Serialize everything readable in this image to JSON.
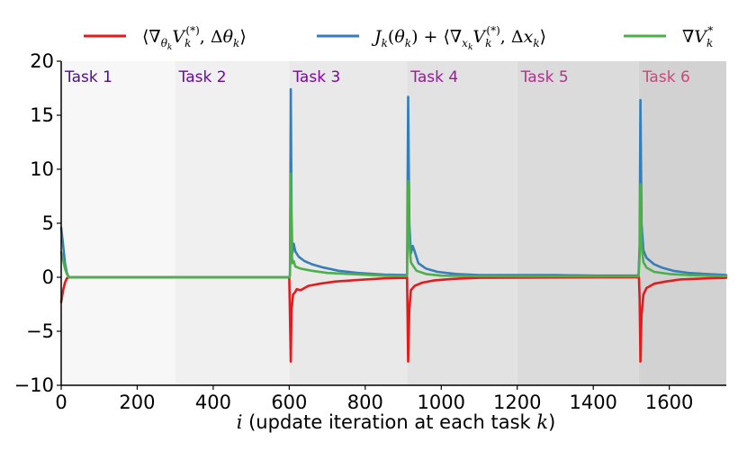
{
  "chart_data": {
    "type": "line",
    "xlabel": "i (update iteration at each task k)",
    "xlabel_italic_i": "i",
    "xlabel_rest": " (update iteration at each task ",
    "xlabel_italic_k": "k",
    "xlabel_end": ")",
    "xlim": [
      0,
      1750
    ],
    "ylim": [
      -10,
      20
    ],
    "xticks": [
      0,
      200,
      400,
      600,
      800,
      1000,
      1200,
      1400,
      1600
    ],
    "yticks": [
      -10,
      -5,
      0,
      5,
      10,
      15,
      20
    ],
    "xtick_labels": [
      "0",
      "200",
      "400",
      "600",
      "800",
      "1000",
      "1200",
      "1400",
      "1600"
    ],
    "ytick_labels": [
      "−10",
      "−5",
      "0",
      "5",
      "10",
      "15",
      "20"
    ],
    "grid": false,
    "legend_position": "top",
    "tasks": [
      {
        "label": "Task 1",
        "start": 0,
        "end": 300,
        "shade": "#f7f7f7",
        "color": "#4b0b9e"
      },
      {
        "label": "Task 2",
        "start": 300,
        "end": 600,
        "shade": "#f0f0f0",
        "color": "#6a0aa6"
      },
      {
        "label": "Task 3",
        "start": 600,
        "end": 910,
        "shade": "#e9e9e9",
        "color": "#7e05a4"
      },
      {
        "label": "Task 4",
        "start": 910,
        "end": 1200,
        "shade": "#e2e2e2",
        "color": "#9c179e"
      },
      {
        "label": "Task 5",
        "start": 1200,
        "end": 1520,
        "shade": "#dbdbdb",
        "color": "#b52f8c"
      },
      {
        "label": "Task 6",
        "start": 1520,
        "end": 1750,
        "shade": "#d2d2d2",
        "color": "#cb4778"
      }
    ],
    "series": [
      {
        "name": "⟨∇θk Vk(*), Δθk⟩",
        "color": "#e41a1c",
        "points": [
          [
            0,
            -2.3
          ],
          [
            5,
            -1.2
          ],
          [
            10,
            -0.5
          ],
          [
            15,
            -0.1
          ],
          [
            20,
            0
          ],
          [
            600,
            0
          ],
          [
            604,
            -7.8
          ],
          [
            606,
            -3
          ],
          [
            610,
            -1.6
          ],
          [
            615,
            -1.4
          ],
          [
            620,
            -1.1
          ],
          [
            630,
            -1.2
          ],
          [
            650,
            -0.8
          ],
          [
            680,
            -0.6
          ],
          [
            720,
            -0.4
          ],
          [
            780,
            -0.25
          ],
          [
            850,
            -0.1
          ],
          [
            909,
            -0.05
          ],
          [
            910,
            0
          ],
          [
            913,
            -7.8
          ],
          [
            916,
            -3
          ],
          [
            920,
            -1.2
          ],
          [
            930,
            -0.8
          ],
          [
            950,
            -0.5
          ],
          [
            980,
            -0.3
          ],
          [
            1030,
            -0.15
          ],
          [
            1100,
            -0.05
          ],
          [
            1520,
            0
          ],
          [
            1522,
            -2
          ],
          [
            1524,
            -7.8
          ],
          [
            1527,
            -3.5
          ],
          [
            1532,
            -1.6
          ],
          [
            1540,
            -1
          ],
          [
            1560,
            -0.6
          ],
          [
            1590,
            -0.4
          ],
          [
            1630,
            -0.2
          ],
          [
            1700,
            -0.1
          ],
          [
            1750,
            -0.05
          ]
        ]
      },
      {
        "name": "Jk(θk) + ⟨∇xk Vk(*), Δxk⟩",
        "color": "#377eb8",
        "points": [
          [
            0,
            4.6
          ],
          [
            5,
            3
          ],
          [
            10,
            1.3
          ],
          [
            15,
            0.4
          ],
          [
            20,
            0
          ],
          [
            600,
            0
          ],
          [
            602,
            0.2
          ],
          [
            604,
            17.4
          ],
          [
            606,
            6
          ],
          [
            608,
            2.2
          ],
          [
            612,
            3.1
          ],
          [
            616,
            2.4
          ],
          [
            625,
            1.9
          ],
          [
            640,
            1.5
          ],
          [
            660,
            1.2
          ],
          [
            690,
            0.9
          ],
          [
            730,
            0.6
          ],
          [
            780,
            0.4
          ],
          [
            850,
            0.25
          ],
          [
            909,
            0.2
          ],
          [
            910,
            0.3
          ],
          [
            913,
            16.7
          ],
          [
            916,
            5
          ],
          [
            920,
            2.2
          ],
          [
            925,
            2.9
          ],
          [
            930,
            2.4
          ],
          [
            940,
            1.3
          ],
          [
            960,
            0.8
          ],
          [
            990,
            0.5
          ],
          [
            1040,
            0.3
          ],
          [
            1100,
            0.2
          ],
          [
            1200,
            0.2
          ],
          [
            1300,
            0.2
          ],
          [
            1400,
            0.15
          ],
          [
            1519,
            0.15
          ],
          [
            1522,
            3
          ],
          [
            1524,
            16.4
          ],
          [
            1527,
            5
          ],
          [
            1532,
            2.5
          ],
          [
            1540,
            1.8
          ],
          [
            1560,
            1.2
          ],
          [
            1580,
            0.9
          ],
          [
            1610,
            0.6
          ],
          [
            1650,
            0.4
          ],
          [
            1700,
            0.3
          ],
          [
            1750,
            0.2
          ]
        ]
      },
      {
        "name": "∇Vk*",
        "color": "#4daf4a",
        "points": [
          [
            0,
            2.3
          ],
          [
            5,
            1.6
          ],
          [
            10,
            0.8
          ],
          [
            15,
            0.3
          ],
          [
            20,
            0
          ],
          [
            600,
            0
          ],
          [
            602,
            0.2
          ],
          [
            604,
            9.6
          ],
          [
            606,
            3.5
          ],
          [
            608,
            1.3
          ],
          [
            612,
            1.5
          ],
          [
            616,
            1.0
          ],
          [
            630,
            0.8
          ],
          [
            660,
            0.6
          ],
          [
            700,
            0.4
          ],
          [
            760,
            0.3
          ],
          [
            850,
            0.15
          ],
          [
            909,
            0.1
          ],
          [
            910,
            0.2
          ],
          [
            913,
            8.9
          ],
          [
            916,
            3.2
          ],
          [
            920,
            1.4
          ],
          [
            925,
            1.1
          ],
          [
            935,
            0.6
          ],
          [
            960,
            0.3
          ],
          [
            1000,
            0.15
          ],
          [
            1100,
            0.1
          ],
          [
            1300,
            0.08
          ],
          [
            1519,
            0.08
          ],
          [
            1522,
            2
          ],
          [
            1524,
            8.6
          ],
          [
            1527,
            3
          ],
          [
            1532,
            1.4
          ],
          [
            1540,
            0.9
          ],
          [
            1560,
            0.5
          ],
          [
            1600,
            0.3
          ],
          [
            1650,
            0.2
          ],
          [
            1750,
            0.1
          ]
        ]
      }
    ]
  }
}
